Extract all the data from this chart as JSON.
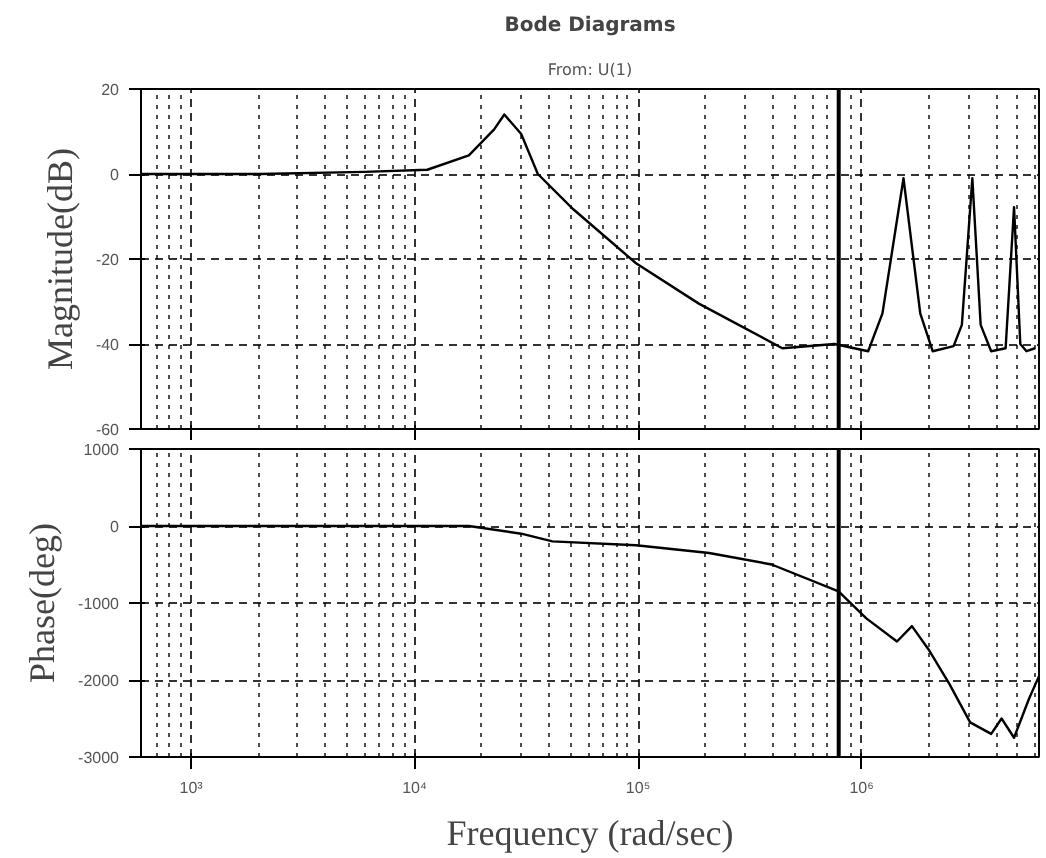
{
  "chart_data": [
    {
      "type": "line",
      "title": "Bode Diagrams",
      "subtitle": "From: U(1)",
      "ylabel": "Magnitude(dB)",
      "log": "x",
      "grid": true,
      "tick_labels": "y",
      "line_style": "solid",
      "xlim": [
        597,
        6220000
      ],
      "xticks": [
        1000,
        10000,
        100000,
        1000000
      ],
      "ylim": [
        -60,
        20
      ],
      "yticks": [
        20,
        0,
        -20,
        -40,
        -60
      ],
      "ref_lines": [
        {
          "axis": "x",
          "value": 790000
        }
      ],
      "series": [
        {
          "color": "#000000",
          "x": [
            597,
            2030,
            5970,
            11400,
            17500,
            22700,
            25200,
            30000,
            35600,
            51300,
            97900,
            187000,
            442000,
            756000,
            1070000,
            1240000,
            1540000,
            1830000,
            2080000,
            2580000,
            2810000,
            3130000,
            3410000,
            3800000,
            4410000,
            4810000,
            5130000,
            5470000,
            5970000
          ],
          "values": [
            0,
            0,
            0.5,
            1,
            4.4,
            10.5,
            14,
            9.4,
            0,
            -8.3,
            -21,
            -30.5,
            -41,
            -40,
            -41.7,
            -32.8,
            -1,
            -32.8,
            -41.7,
            -40.5,
            -35.5,
            -1,
            -35.5,
            -41.7,
            -41,
            -7.8,
            -40,
            -41.7,
            -41
          ]
        }
      ]
    },
    {
      "type": "line",
      "ylabel": "Phase(deg)",
      "xlabel": "Frequency (rad/sec)",
      "log": "x",
      "grid": true,
      "line_style": "solid",
      "xlim": [
        597,
        6220000
      ],
      "xticks": [
        {
          "value": 1000,
          "label": "10³"
        },
        {
          "value": 10000,
          "label": "10⁴"
        },
        {
          "value": 100000,
          "label": "10⁵"
        },
        {
          "value": 1000000,
          "label": "10⁶"
        }
      ],
      "ylim": [
        -3000,
        1000
      ],
      "yticks": [
        1000,
        0,
        -1000,
        -2000,
        -3000
      ],
      "ref_lines": [
        {
          "axis": "x",
          "value": 790000
        }
      ],
      "series": [
        {
          "color": "#000000",
          "x": [
            597,
            17500,
            30000,
            41400,
            97900,
            208000,
            396000,
            789000,
            1050000,
            1440000,
            1680000,
            1990000,
            2470000,
            3060000,
            3800000,
            4230000,
            4810000,
            5600000,
            6220000
          ],
          "values": [
            0,
            0,
            -100,
            -200,
            -250,
            -350,
            -500,
            -850,
            -1200,
            -1500,
            -1300,
            -1600,
            -2050,
            -2550,
            -2700,
            -2500,
            -2750,
            -2250,
            -1950
          ]
        }
      ]
    }
  ]
}
